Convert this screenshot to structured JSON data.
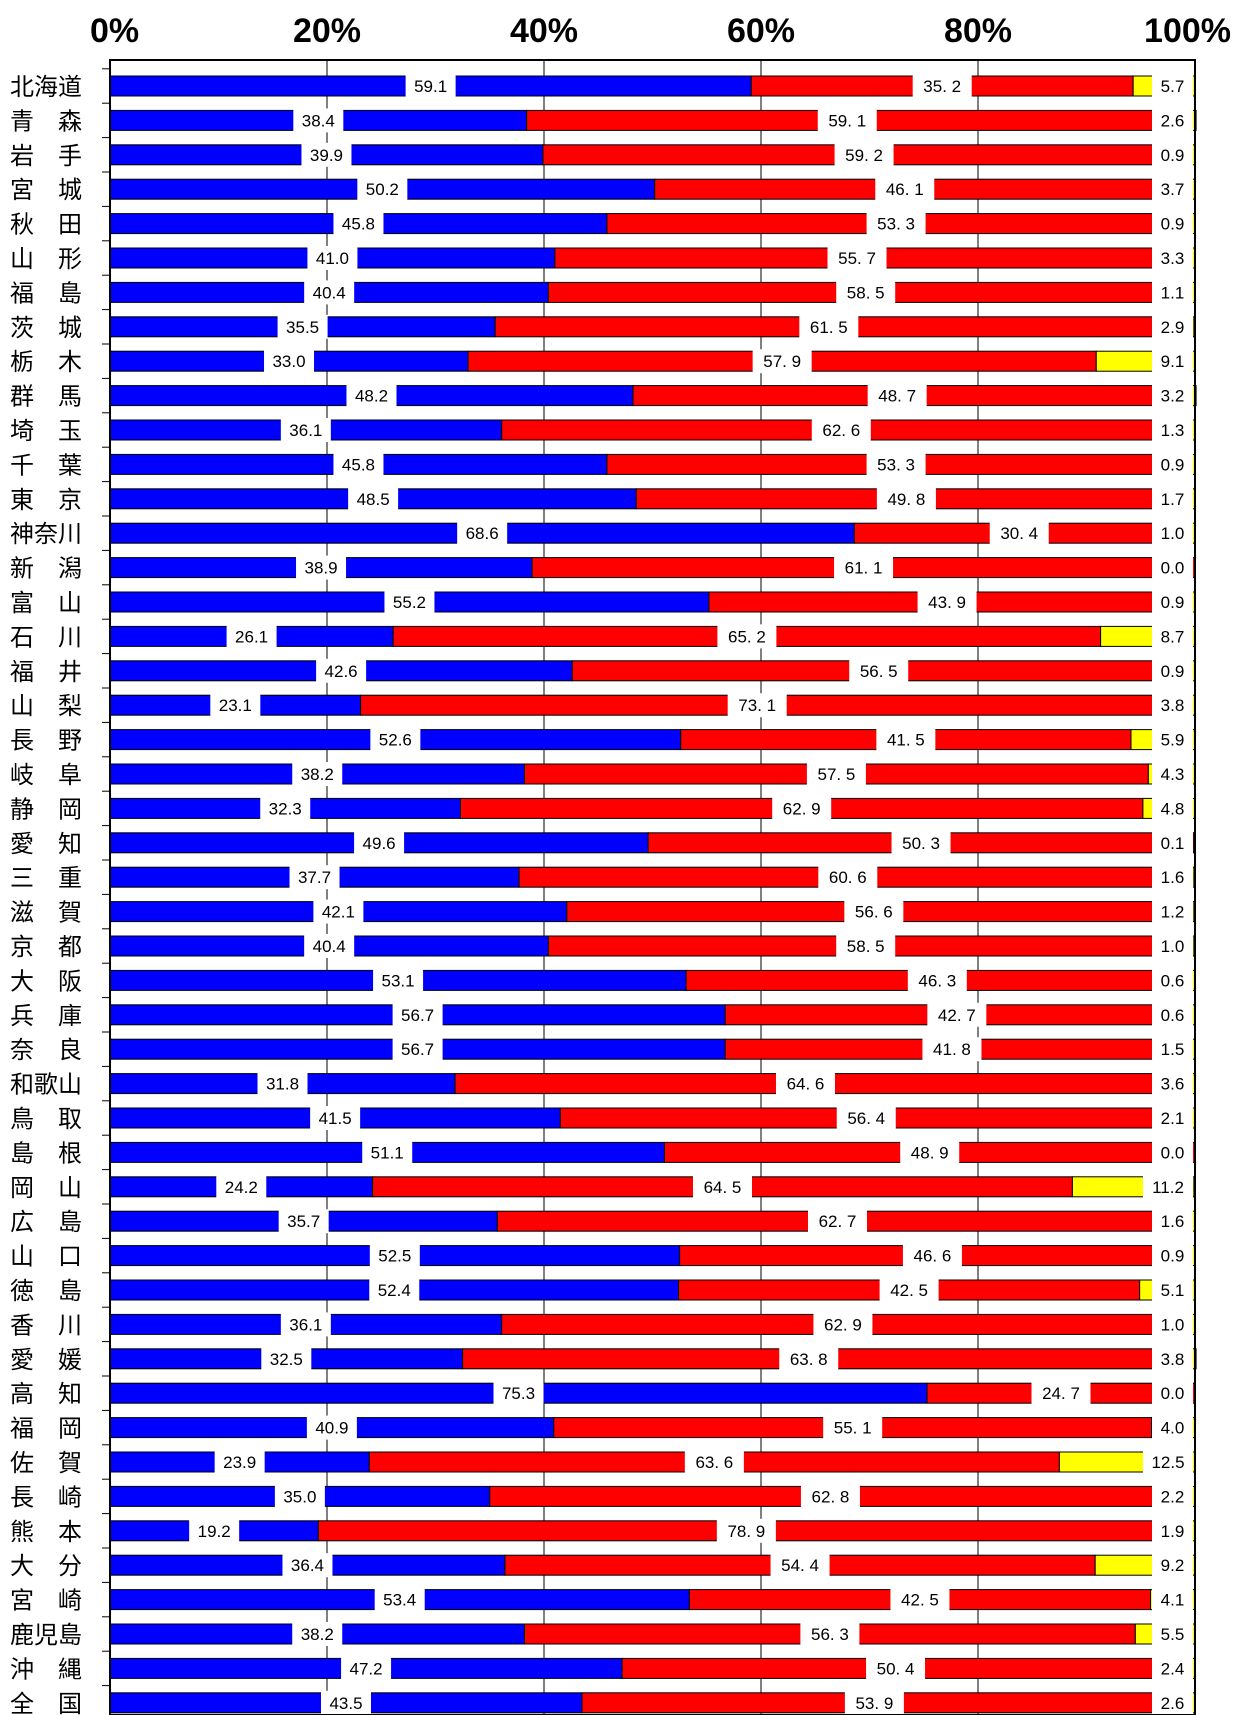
{
  "chart_data": {
    "type": "bar",
    "orientation": "horizontal",
    "stacked": true,
    "percent": true,
    "title": "",
    "xlabel": "",
    "ylabel": "",
    "xlim": [
      0,
      100
    ],
    "x_ticks": [
      "0%",
      "20%",
      "40%",
      "60%",
      "80%",
      "100%"
    ],
    "x_tick_values": [
      0,
      20,
      40,
      60,
      80,
      100
    ],
    "grid": true,
    "legend": "none",
    "categories": [
      "北海道",
      "青　森",
      "岩　手",
      "宮　城",
      "秋　田",
      "山　形",
      "福　島",
      "茨　城",
      "栃　木",
      "群　馬",
      "埼　玉",
      "千　葉",
      "東　京",
      "神奈川",
      "新　潟",
      "富　山",
      "石　川",
      "福　井",
      "山　梨",
      "長　野",
      "岐　阜",
      "静　岡",
      "愛　知",
      "三　重",
      "滋　賀",
      "京　都",
      "大　阪",
      "兵　庫",
      "奈　良",
      "和歌山",
      "鳥　取",
      "島　根",
      "岡　山",
      "広　島",
      "山　口",
      "徳　島",
      "香　川",
      "愛　媛",
      "高　知",
      "福　岡",
      "佐　賀",
      "長　崎",
      "熊　本",
      "大　分",
      "宮　崎",
      "鹿児島",
      "沖　縄",
      "全　国"
    ],
    "series": [
      {
        "color": "#0000ff",
        "values": [
          59.1,
          38.4,
          39.9,
          50.2,
          45.8,
          41.0,
          40.4,
          35.5,
          33.0,
          48.2,
          36.1,
          45.8,
          48.5,
          68.6,
          38.9,
          55.2,
          26.1,
          42.6,
          23.1,
          52.6,
          38.2,
          32.3,
          49.6,
          37.7,
          42.1,
          40.4,
          53.1,
          56.7,
          56.7,
          31.8,
          41.5,
          51.1,
          24.2,
          35.7,
          52.5,
          52.4,
          36.1,
          32.5,
          75.3,
          40.9,
          23.9,
          35.0,
          19.2,
          36.4,
          53.4,
          38.2,
          47.2,
          43.5
        ],
        "labels": [
          "59.1",
          "38.4",
          "39.9",
          "50.2",
          "45.8",
          "41.0",
          "40.4",
          "35.5",
          "33.0",
          "48.2",
          "36.1",
          "45.8",
          "48.5",
          "68.6",
          "38.9",
          "55.2",
          "26.1",
          "42.6",
          "23.1",
          "52.6",
          "38.2",
          "32.3",
          "49.6",
          "37.7",
          "42.1",
          "40.4",
          "53.1",
          "56.7",
          "56.7",
          "31.8",
          "41.5",
          "51.1",
          "24.2",
          "35.7",
          "52.5",
          "52.4",
          "36.1",
          "32.5",
          "75.3",
          "40.9",
          "23.9",
          "35.0",
          "19.2",
          "36.4",
          "53.4",
          "38.2",
          "47.2",
          "43.5"
        ]
      },
      {
        "color": "#ff0000",
        "values": [
          35.2,
          59.1,
          59.2,
          46.1,
          53.3,
          55.7,
          58.5,
          61.5,
          57.9,
          48.7,
          62.6,
          53.3,
          49.8,
          30.4,
          61.1,
          43.9,
          65.2,
          56.5,
          73.1,
          41.5,
          57.5,
          62.9,
          50.3,
          60.6,
          56.6,
          58.5,
          46.3,
          42.7,
          41.8,
          64.6,
          56.4,
          48.9,
          64.5,
          62.7,
          46.6,
          42.5,
          62.9,
          63.8,
          24.7,
          55.1,
          63.6,
          62.8,
          78.9,
          54.4,
          42.5,
          56.3,
          50.4,
          53.9
        ],
        "labels": [
          "35. 2",
          "59. 1",
          "59. 2",
          "46. 1",
          "53. 3",
          "55. 7",
          "58. 5",
          "61. 5",
          "57. 9",
          "48. 7",
          "62. 6",
          "53. 3",
          "49. 8",
          "30. 4",
          "61. 1",
          "43. 9",
          "65. 2",
          "56. 5",
          "73. 1",
          "41. 5",
          "57. 5",
          "62. 9",
          "50. 3",
          "60. 6",
          "56. 6",
          "58. 5",
          "46. 3",
          "42. 7",
          "41. 8",
          "64. 6",
          "56. 4",
          "48. 9",
          "64. 5",
          "62. 7",
          "46. 6",
          "42. 5",
          "62. 9",
          "63. 8",
          "24. 7",
          "55. 1",
          "63. 6",
          "62. 8",
          "78. 9",
          "54. 4",
          "42. 5",
          "56. 3",
          "50. 4",
          "53. 9"
        ]
      },
      {
        "color": "#ffff00",
        "values": [
          5.7,
          2.6,
          0.9,
          3.7,
          0.9,
          3.3,
          1.1,
          2.9,
          9.1,
          3.2,
          1.3,
          0.9,
          1.7,
          1.0,
          0.0,
          0.9,
          8.7,
          0.9,
          3.8,
          5.9,
          4.3,
          4.8,
          0.1,
          1.6,
          1.2,
          1.0,
          0.6,
          0.6,
          1.5,
          3.6,
          2.1,
          0.0,
          11.2,
          1.6,
          0.9,
          5.1,
          1.0,
          3.8,
          0.0,
          4.0,
          12.5,
          2.2,
          1.9,
          9.2,
          4.1,
          5.5,
          2.4,
          2.6
        ],
        "labels": [
          "5.7",
          "2.6",
          "0.9",
          "3.7",
          "0.9",
          "3.3",
          "1.1",
          "2.9",
          "9.1",
          "3.2",
          "1.3",
          "0.9",
          "1.7",
          "1.0",
          "0.0",
          "0.9",
          "8.7",
          "0.9",
          "3.8",
          "5.9",
          "4.3",
          "4.8",
          "0.1",
          "1.6",
          "1.2",
          "1.0",
          "0.6",
          "0.6",
          "1.5",
          "3.6",
          "2.1",
          "0.0",
          "11.2",
          "1.6",
          "0.9",
          "5.1",
          "1.0",
          "3.8",
          "0.0",
          "4.0",
          "12.5",
          "2.2",
          "1.9",
          "9.2",
          "4.1",
          "5.5",
          "2.4",
          "2.6"
        ]
      }
    ]
  }
}
